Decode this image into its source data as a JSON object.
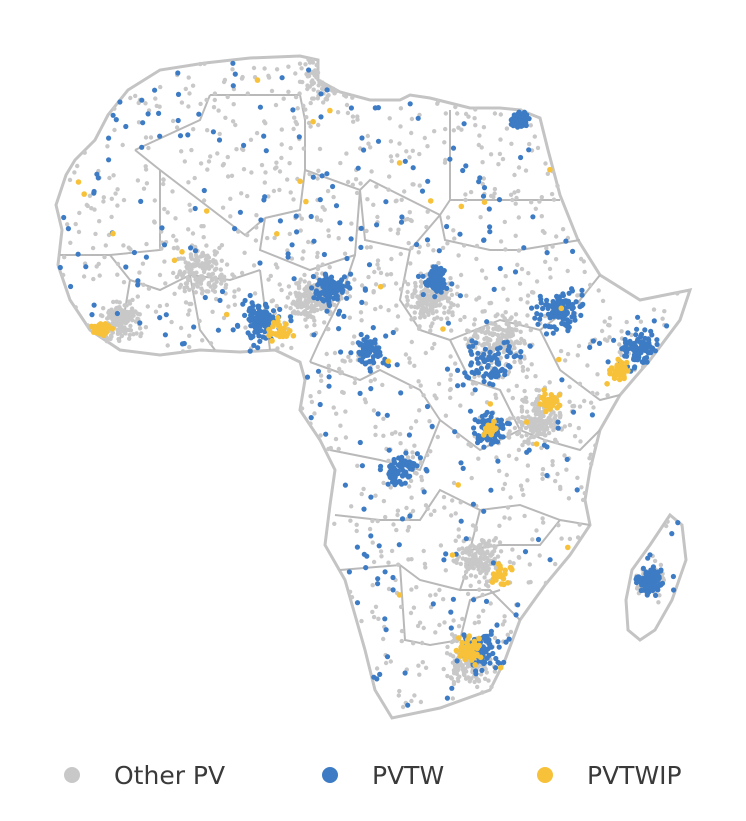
{
  "map": {
    "region": "Africa",
    "colors": {
      "land_border": "#b9b9b9",
      "coast": "#c4c4c4"
    }
  },
  "legend": {
    "items": [
      {
        "id": "other",
        "label": "Other PV",
        "color": "#c8c8c8"
      },
      {
        "id": "pvtw",
        "label": "PVTW",
        "color": "#3d7cc4"
      },
      {
        "id": "pvtwip",
        "label": "PVTWIP",
        "color": "#f7c23a"
      }
    ]
  },
  "point_density": {
    "other_pv_points": 2600,
    "pvtw_points": 1400,
    "pvtwip_points": 260
  }
}
